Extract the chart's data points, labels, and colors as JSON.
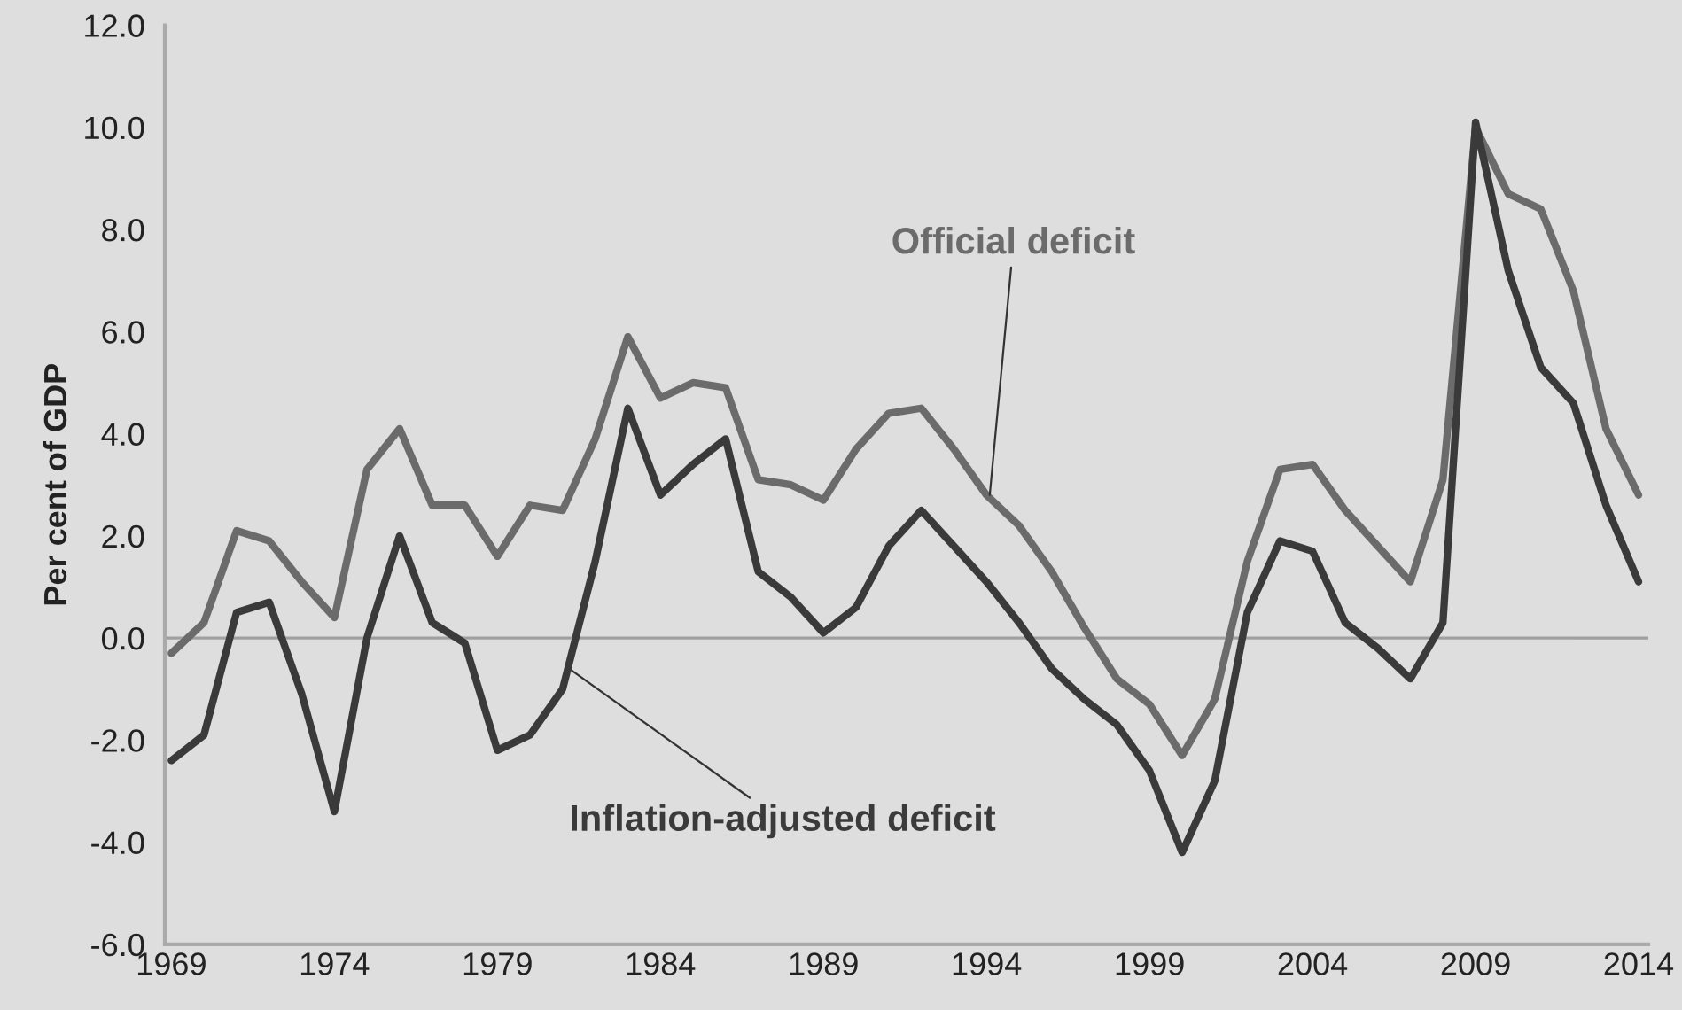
{
  "chart_data": {
    "type": "line",
    "ylabel": "Per cent of GDP",
    "x": [
      1969,
      1970,
      1971,
      1972,
      1973,
      1974,
      1975,
      1976,
      1977,
      1978,
      1979,
      1980,
      1981,
      1982,
      1983,
      1984,
      1985,
      1986,
      1987,
      1988,
      1989,
      1990,
      1991,
      1992,
      1993,
      1994,
      1995,
      1996,
      1997,
      1998,
      1999,
      2000,
      2001,
      2002,
      2003,
      2004,
      2005,
      2006,
      2007,
      2008,
      2009,
      2010,
      2011,
      2012,
      2013,
      2014
    ],
    "series": [
      {
        "color": "#6b6b6b",
        "values": [
          -0.3,
          0.3,
          2.1,
          1.9,
          1.1,
          0.4,
          3.3,
          4.1,
          2.6,
          2.6,
          1.6,
          2.6,
          2.5,
          3.9,
          5.9,
          4.7,
          5.0,
          4.9,
          3.1,
          3.0,
          2.7,
          3.7,
          4.4,
          4.5,
          3.7,
          2.8,
          2.2,
          1.3,
          0.2,
          -0.8,
          -1.3,
          -2.3,
          -1.2,
          1.5,
          3.3,
          3.4,
          2.5,
          1.8,
          1.1,
          3.1,
          10.0,
          8.7,
          8.4,
          6.8,
          4.1,
          2.8
        ]
      },
      {
        "color": "#3a3a3a",
        "values": [
          -2.4,
          -1.9,
          0.5,
          0.7,
          -1.1,
          -3.4,
          0.0,
          2.0,
          0.3,
          -0.1,
          -2.2,
          -1.9,
          -1.0,
          1.5,
          4.5,
          2.8,
          3.4,
          3.9,
          1.3,
          0.8,
          0.1,
          0.6,
          1.8,
          2.5,
          1.8,
          1.1,
          0.3,
          -0.6,
          -1.2,
          -1.7,
          -2.6,
          -4.2,
          -2.8,
          0.5,
          1.9,
          1.7,
          0.3,
          -0.2,
          -0.8,
          0.3,
          10.1,
          7.2,
          5.3,
          4.6,
          2.6,
          1.1
        ]
      }
    ],
    "annotations": [
      {
        "text": "Official deficit",
        "x": 1994.1,
        "y": 2.8
      },
      {
        "text": "Inflation-adjusted deficit",
        "x": 1981.2,
        "y": -0.6
      }
    ],
    "ref_lines": [
      {
        "axis": "y",
        "value": 0,
        "color": "#a0a0a0"
      }
    ],
    "xlim": [
      1968.8,
      2014.3
    ],
    "xticks": [
      1969,
      1974,
      1979,
      1984,
      1989,
      1994,
      1999,
      2004,
      2009,
      2014
    ],
    "ylim": [
      -6.0,
      12.0
    ],
    "yticks": [
      {
        "value": -6,
        "label": "-6.0"
      },
      {
        "value": -4,
        "label": "-4.0"
      },
      {
        "value": -2,
        "label": "-2.0"
      },
      {
        "value": 0,
        "label": "0.0"
      },
      {
        "value": 2,
        "label": "2.0"
      },
      {
        "value": 4,
        "label": "4.0"
      },
      {
        "value": 6,
        "label": "6.0"
      },
      {
        "value": 8,
        "label": "8.0"
      },
      {
        "value": 10,
        "label": "10.0"
      },
      {
        "value": 12,
        "label": "12.0"
      }
    ],
    "grid": false,
    "legend": false
  }
}
